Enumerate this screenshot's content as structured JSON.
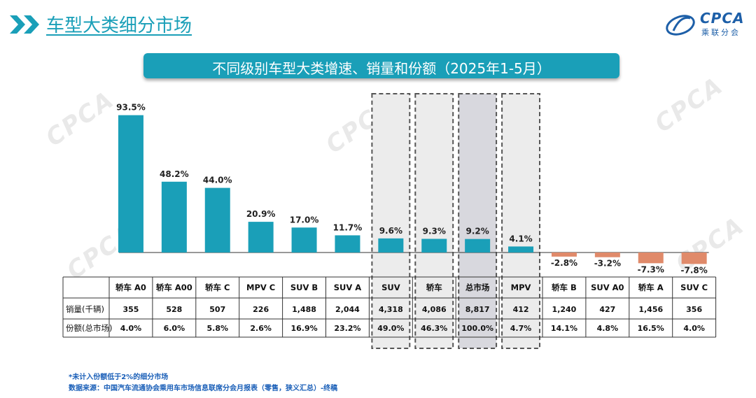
{
  "page": {
    "title": "车型大类细分市场",
    "banner": "不同级别车型大类增速、销量和份额（2025年1-5月）",
    "logo_text": "CPCA",
    "logo_sub": "乘联分会",
    "footnote1": "*未计入份额低于2%的细分市场",
    "footnote2": "数据来源：中国汽车流通协会乘用车市场信息联席分会月报表（零售，狭义汇总）-终稿"
  },
  "colors": {
    "positive": "#1a9fb8",
    "negative": "#e08a6a",
    "accent": "#1a9fb8",
    "highlight_fill": "#ececec",
    "highlight_total": "#d8d8de"
  },
  "chart_data": {
    "type": "bar",
    "title": "不同级别车型大类增速、销量和份额（2025年1-5月）",
    "categories": [
      "轿车 A0",
      "轿车 A00",
      "轿车 C",
      "MPV C",
      "SUV B",
      "SUV A",
      "SUV",
      "轿车",
      "总市场",
      "MPV",
      "轿车 B",
      "SUV A0",
      "轿车 A",
      "SUV C"
    ],
    "series": [
      {
        "values": [
          93.5,
          48.2,
          44.0,
          20.9,
          17.0,
          11.7,
          9.6,
          9.3,
          9.2,
          4.1,
          -2.8,
          -3.2,
          -7.3,
          -7.8
        ]
      }
    ],
    "value_labels": [
      "93.5%",
      "48.2%",
      "44.0%",
      "20.9%",
      "17.0%",
      "11.7%",
      "9.6%",
      "9.3%",
      "9.2%",
      "4.1%",
      "-2.8%",
      "-3.2%",
      "-7.3%",
      "-7.8%"
    ],
    "highlighted": [
      "SUV",
      "轿车",
      "总市场",
      "MPV"
    ],
    "table": {
      "row_labels": [
        "销量(千辆)",
        "份额(总市场)"
      ],
      "sales": [
        "355",
        "528",
        "507",
        "226",
        "1,488",
        "2,044",
        "4,318",
        "4,086",
        "8,817",
        "412",
        "1,240",
        "427",
        "1,456",
        "356"
      ],
      "share": [
        "4.0%",
        "6.0%",
        "5.8%",
        "2.6%",
        "16.9%",
        "23.2%",
        "49.0%",
        "46.3%",
        "100.0%",
        "4.7%",
        "14.1%",
        "4.8%",
        "16.5%",
        "4.0%"
      ]
    }
  }
}
